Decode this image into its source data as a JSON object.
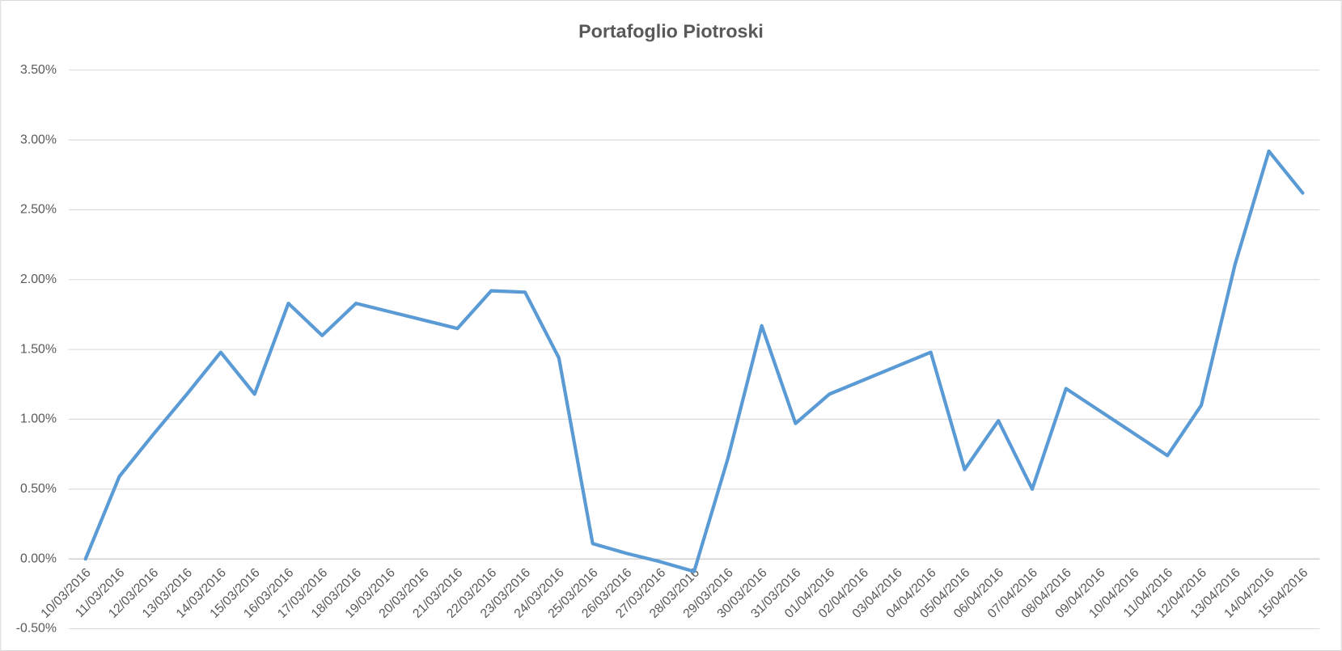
{
  "chart_data": {
    "type": "line",
    "title": "Portafoglio Piotroski",
    "categories": [
      "10/03/2016",
      "11/03/2016",
      "12/03/2016",
      "13/03/2016",
      "14/03/2016",
      "15/03/2016",
      "16/03/2016",
      "17/03/2016",
      "18/03/2016",
      "19/03/2016",
      "20/03/2016",
      "21/03/2016",
      "22/03/2016",
      "23/03/2016",
      "24/03/2016",
      "25/03/2016",
      "26/03/2016",
      "27/03/2016",
      "28/03/2016",
      "29/03/2016",
      "30/03/2016",
      "31/03/2016",
      "01/04/2016",
      "02/04/2016",
      "03/04/2016",
      "04/04/2016",
      "05/04/2016",
      "06/04/2016",
      "07/04/2016",
      "08/04/2016",
      "09/04/2016",
      "10/04/2016",
      "11/04/2016",
      "12/04/2016",
      "13/04/2016",
      "14/04/2016",
      "15/04/2016"
    ],
    "series": [
      {
        "color": "#5b9bd5",
        "values": [
          0,
          0.59,
          0.89,
          1.18,
          1.48,
          1.18,
          1.83,
          1.6,
          1.83,
          1.77,
          1.71,
          1.65,
          1.92,
          1.91,
          1.44,
          0.11,
          0.04,
          -0.02,
          -0.09,
          0.72,
          1.67,
          0.97,
          1.18,
          1.28,
          1.38,
          1.48,
          0.64,
          0.99,
          0.5,
          1.22,
          1.06,
          0.9,
          0.74,
          1.1,
          2.11,
          2.92,
          2.62
        ]
      }
    ],
    "ylim": [
      -0.5,
      3.5
    ],
    "yticks": [
      {
        "value": -0.5,
        "label": "-0.50%"
      },
      {
        "value": 0,
        "label": "0.00%"
      },
      {
        "value": 0.5,
        "label": "0.50%"
      },
      {
        "value": 1,
        "label": "1.00%"
      },
      {
        "value": 1.5,
        "label": "1.50%"
      },
      {
        "value": 2,
        "label": "2.00%"
      },
      {
        "value": 2.5,
        "label": "2.50%"
      },
      {
        "value": 3,
        "label": "3.00%"
      },
      {
        "value": 3.5,
        "label": "3.50%"
      }
    ],
    "grid": true
  }
}
